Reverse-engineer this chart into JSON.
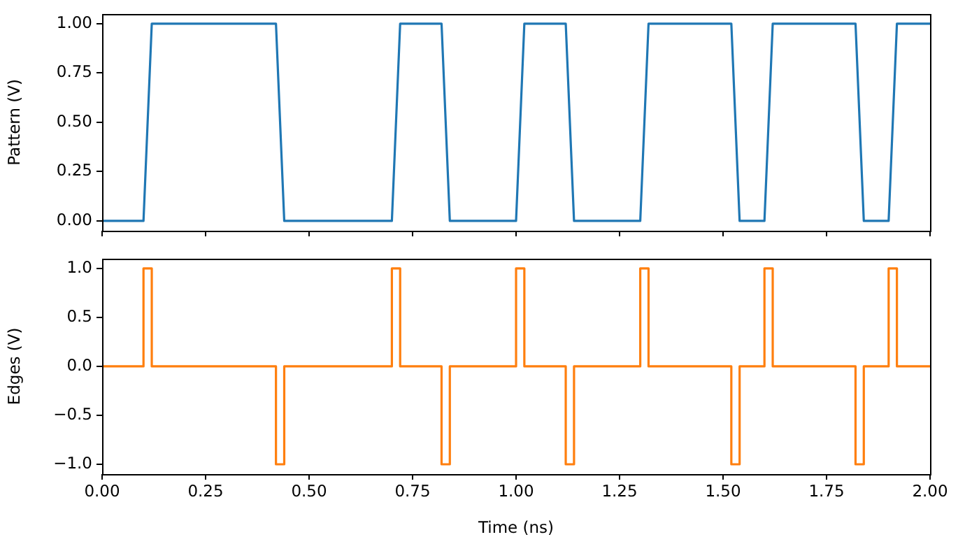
{
  "chart_data": [
    {
      "type": "line",
      "ylabel": "Pattern (V)",
      "xlim": [
        0,
        2
      ],
      "xticks": [
        {
          "value": 0,
          "label": null
        },
        {
          "value": 0.25,
          "label": null
        },
        {
          "value": 0.5,
          "label": null
        },
        {
          "value": 0.75,
          "label": null
        },
        {
          "value": 1,
          "label": null
        },
        {
          "value": 1.25,
          "label": null
        },
        {
          "value": 1.5,
          "label": null
        },
        {
          "value": 1.75,
          "label": null
        },
        {
          "value": 2,
          "label": null
        }
      ],
      "ylim": [
        -0.05,
        1.05
      ],
      "yticks": [
        {
          "value": 0,
          "label": "0.00"
        },
        {
          "value": 0.25,
          "label": "0.25"
        },
        {
          "value": 0.5,
          "label": "0.50"
        },
        {
          "value": 0.75,
          "label": "0.75"
        },
        {
          "value": 1,
          "label": "1.00"
        }
      ],
      "tick_labels": "y",
      "grid": false,
      "legend": false,
      "marker": "none",
      "line_style": "solid",
      "series": [
        {
          "color": "#1f77b4",
          "x": [
            0,
            0.1,
            0.12,
            0.42,
            0.44,
            0.7,
            0.72,
            0.82,
            0.84,
            1.0,
            1.02,
            1.12,
            1.14,
            1.3,
            1.32,
            1.52,
            1.54,
            1.6,
            1.62,
            1.82,
            1.84,
            1.9,
            1.92,
            2.0
          ],
          "values": [
            0,
            0,
            1,
            1,
            0,
            0,
            1,
            1,
            0,
            0,
            1,
            1,
            0,
            0,
            1,
            1,
            0,
            0,
            1,
            1,
            0,
            0,
            1,
            1
          ]
        }
      ]
    },
    {
      "type": "step",
      "xlabel": "Time (ns)",
      "ylabel": "Edges (V)",
      "xlim": [
        0,
        2
      ],
      "xticks": [
        {
          "value": 0,
          "label": "0.00"
        },
        {
          "value": 0.25,
          "label": "0.25"
        },
        {
          "value": 0.5,
          "label": "0.50"
        },
        {
          "value": 0.75,
          "label": "0.75"
        },
        {
          "value": 1,
          "label": "1.00"
        },
        {
          "value": 1.25,
          "label": "1.25"
        },
        {
          "value": 1.5,
          "label": "1.50"
        },
        {
          "value": 1.75,
          "label": "1.75"
        },
        {
          "value": 2,
          "label": "2.00"
        }
      ],
      "ylim": [
        -1.1,
        1.1
      ],
      "yticks": [
        {
          "value": -1,
          "label": "−1.0"
        },
        {
          "value": -0.5,
          "label": "−0.5"
        },
        {
          "value": 0,
          "label": "0.0"
        },
        {
          "value": 0.5,
          "label": "0.5"
        },
        {
          "value": 1,
          "label": "1.0"
        }
      ],
      "grid": false,
      "legend": false,
      "marker": "none",
      "line_style": "solid",
      "series": [
        {
          "color": "#ff7f0e",
          "x": [
            0,
            0.1,
            0.12,
            0.42,
            0.44,
            0.7,
            0.72,
            0.82,
            0.84,
            1.0,
            1.02,
            1.12,
            1.14,
            1.3,
            1.32,
            1.52,
            1.54,
            1.6,
            1.62,
            1.82,
            1.84,
            1.9,
            1.92,
            2.0
          ],
          "values": [
            0,
            1,
            0,
            -1,
            0,
            1,
            0,
            -1,
            0,
            1,
            0,
            -1,
            0,
            1,
            0,
            -1,
            0,
            1,
            0,
            -1,
            0,
            1,
            0,
            0
          ]
        }
      ]
    }
  ]
}
